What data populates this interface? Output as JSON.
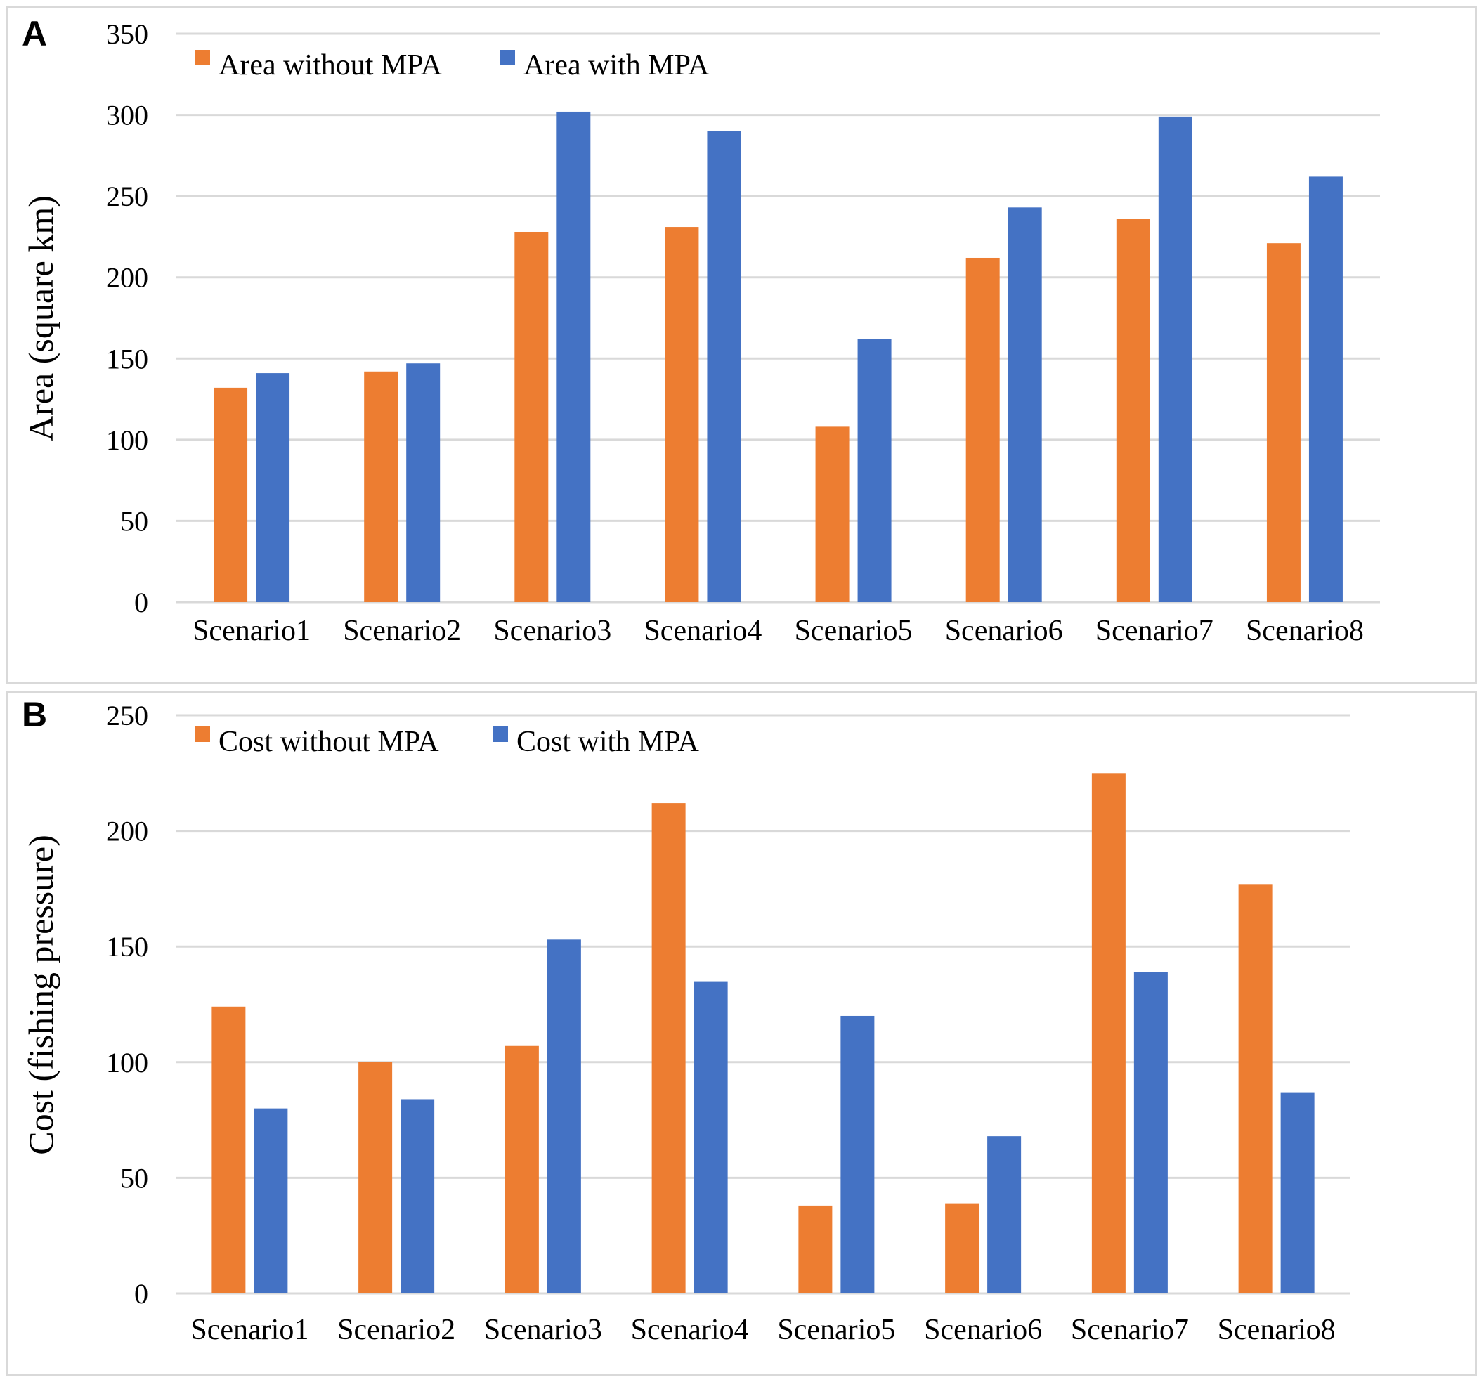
{
  "chart_data": [
    {
      "type": "bar",
      "panel_label": "A",
      "ylabel": "Area (square km)",
      "ylim": [
        0,
        350
      ],
      "yticks": [
        "0",
        "50",
        "100",
        "150",
        "200",
        "250",
        "300",
        "350"
      ],
      "categories": [
        "Scenario1",
        "Scenario2",
        "Scenario3",
        "Scenario4",
        "Scenario5",
        "Scenario6",
        "Scenario7",
        "Scenario8"
      ],
      "series": [
        {
          "name": "Area without MPA",
          "color": "#ED7D31",
          "values": [
            132,
            142,
            228,
            231,
            108,
            212,
            236,
            221
          ]
        },
        {
          "name": "Area with MPA",
          "color": "#4472C4",
          "values": [
            141,
            147,
            302,
            290,
            162,
            243,
            299,
            262
          ]
        }
      ],
      "legend_position": "top-left",
      "grid": true
    },
    {
      "type": "bar",
      "panel_label": "B",
      "ylabel": "Cost (fishing pressure)",
      "ylim": [
        0,
        250
      ],
      "yticks": [
        "0",
        "50",
        "100",
        "150",
        "200",
        "250"
      ],
      "categories": [
        "Scenario1",
        "Scenario2",
        "Scenario3",
        "Scenario4",
        "Scenario5",
        "Scenario6",
        "Scenario7",
        "Scenario8"
      ],
      "series": [
        {
          "name": "Cost without MPA",
          "color": "#ED7D31",
          "values": [
            124,
            100,
            107,
            212,
            38,
            39,
            225,
            177
          ]
        },
        {
          "name": "Cost with MPA",
          "color": "#4472C4",
          "values": [
            80,
            84,
            153,
            135,
            120,
            68,
            139,
            87
          ]
        }
      ],
      "legend_position": "top-left",
      "grid": true
    }
  ]
}
